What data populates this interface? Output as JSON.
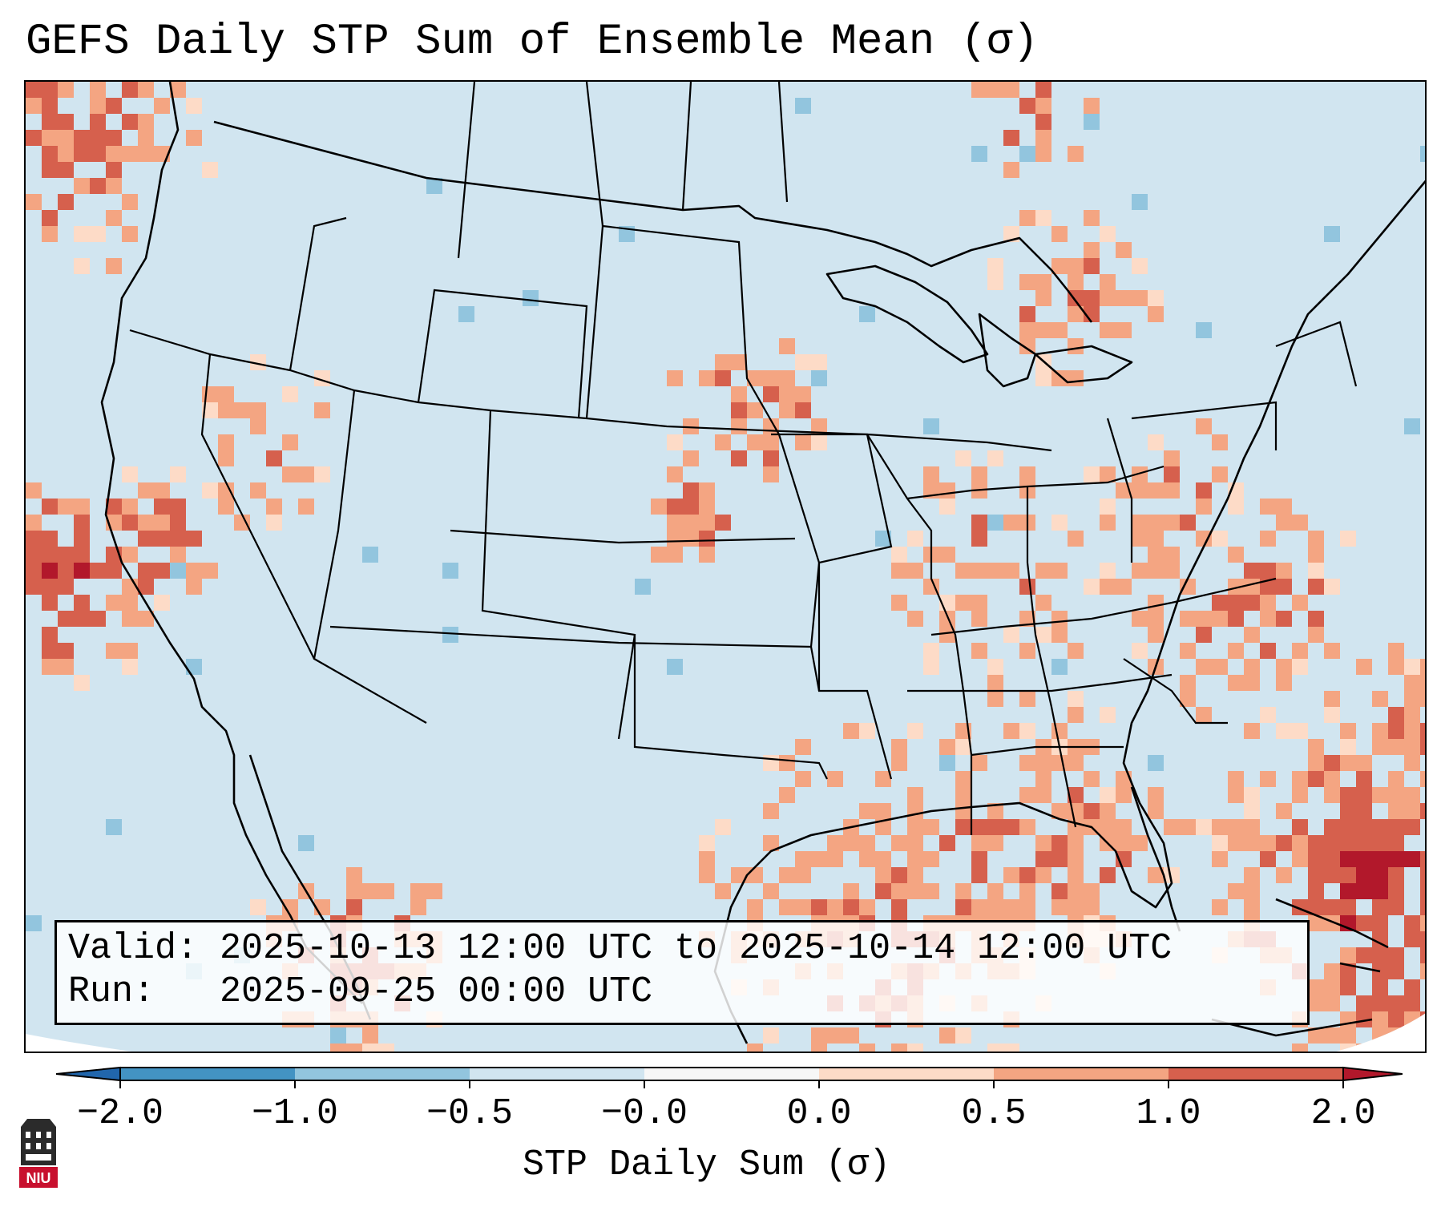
{
  "title": "GEFS Daily STP Sum of Ensemble Mean (σ)",
  "info": {
    "valid_line": "Valid: 2025-10-13 12:00 UTC to 2025-10-14 12:00 UTC",
    "run_line": "Run:   2025-09-25 00:00 UTC"
  },
  "colorbar": {
    "label": "STP Daily Sum (σ)",
    "ticks": [
      "−2.0",
      "−1.0",
      "−0.5",
      "−0.0",
      "0.0",
      "0.5",
      "1.0",
      "2.0"
    ],
    "segments": [
      {
        "from": -2.0,
        "to": -1.0,
        "color": "#4393c3"
      },
      {
        "from": -1.0,
        "to": -0.5,
        "color": "#92c5de"
      },
      {
        "from": -0.5,
        "to": -0.0,
        "color": "#d1e5f0"
      },
      {
        "from": -0.0,
        "to": 0.0,
        "color": "#f7f7f7"
      },
      {
        "from": 0.0,
        "to": 0.5,
        "color": "#fddbc7"
      },
      {
        "from": 0.5,
        "to": 1.0,
        "color": "#f4a582"
      },
      {
        "from": 1.0,
        "to": 2.0,
        "color": "#d6604d"
      }
    ],
    "under_color": "#2166ac",
    "over_color": "#b2182b"
  },
  "map": {
    "region": "Contiguous United States",
    "background_color": "#d1e5f0",
    "positive_regions": [
      "Pacific Northwest offshore",
      "California coast",
      "Northern Plains",
      "Great Lakes",
      "Northeast",
      "Southeast",
      "Gulf of Mexico",
      "Western Atlantic",
      "Western Mexico"
    ]
  },
  "logo": {
    "text": "NIU",
    "color": "#c8102e"
  }
}
